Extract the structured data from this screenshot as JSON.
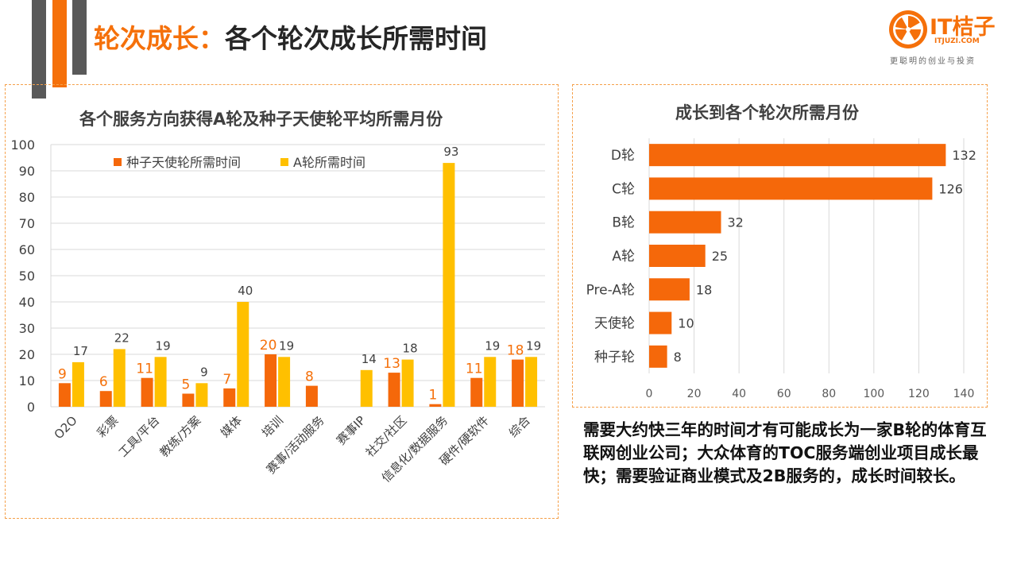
{
  "slide": {
    "title_highlight": "轮次成长：",
    "title_rest": "各个轮次成长所需时间",
    "colors": {
      "accent": "#F5700A",
      "yellow": "#FFC000",
      "bar_orange": "#F5680A",
      "dark_gray": "#595959"
    }
  },
  "logo": {
    "brand": "IT桔子",
    "domain": "ITJUZI.COM",
    "slogan": "更聪明的创业与投资",
    "icon": "orange-slice-icon"
  },
  "chart_data": [
    {
      "type": "bar",
      "title": "各个服务方向获得A轮及种子天使轮平均所需月份",
      "categories": [
        "O2O",
        "彩票",
        "工具/平台",
        "教练/方案",
        "媒体",
        "培训",
        "赛事/活动服务",
        "赛事IP",
        "社交/社区",
        "信息化/数据服务",
        "硬件/硬软件",
        "综合"
      ],
      "series": [
        {
          "name": "种子天使轮所需时间",
          "values": [
            9,
            6,
            11,
            5,
            7,
            20,
            8,
            null,
            13,
            1,
            11,
            18
          ]
        },
        {
          "name": "A轮所需时间",
          "values": [
            17,
            22,
            19,
            9,
            40,
            19,
            null,
            14,
            18,
            93,
            19,
            19
          ]
        }
      ],
      "ylim": [
        0,
        100
      ],
      "yticks": [
        0,
        10,
        20,
        30,
        40,
        50,
        60,
        70,
        80,
        90,
        100
      ],
      "legend": "top-left",
      "grid": true
    },
    {
      "type": "bar",
      "orientation": "horizontal",
      "title": "成长到各个轮次所需月份",
      "categories": [
        "D轮",
        "C轮",
        "B轮",
        "A轮",
        "Pre-A轮",
        "天使轮",
        "种子轮"
      ],
      "values": [
        132,
        126,
        32,
        25,
        18,
        10,
        8
      ],
      "xlim": [
        0,
        140
      ],
      "xticks": [
        0,
        20,
        40,
        60,
        80,
        100,
        120,
        140
      ],
      "grid": true
    }
  ],
  "summary": "需要大约快三年的时间才有可能成长为一家B轮的体育互联网创业公司；大众体育的TOC服务端创业项目成长最快；需要验证商业模式及2B服务的，成长时间较长。"
}
